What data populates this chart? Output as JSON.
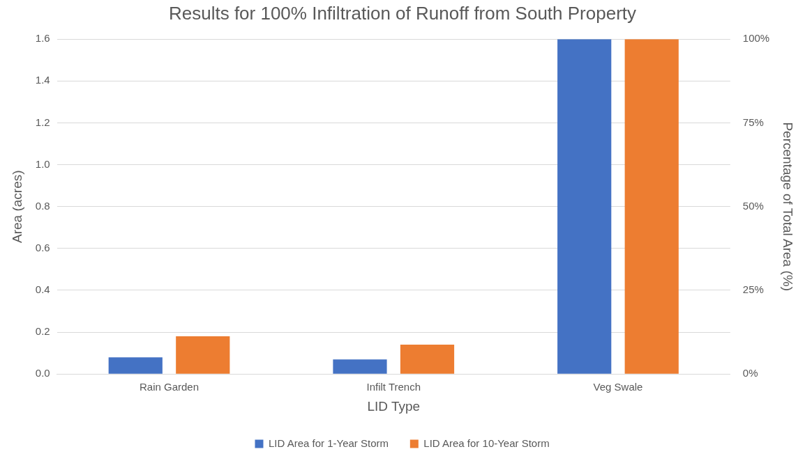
{
  "chart_data": {
    "type": "bar",
    "title": "Results for 100% Infiltration of Runoff from South Property",
    "xlabel": "LID Type",
    "ylabel": "Area (acres)",
    "y2label": "Percentage of Total Area (%)",
    "categories": [
      "Rain Garden",
      "Infilt Trench",
      "Veg Swale"
    ],
    "series": [
      {
        "name": "LID Area for 1-Year Storm",
        "color": "#4472c4",
        "values": [
          0.08,
          0.07,
          1.6
        ]
      },
      {
        "name": "LID Area for 10-Year Storm",
        "color": "#ed7d31",
        "values": [
          0.18,
          0.14,
          1.6
        ]
      }
    ],
    "ylim": [
      0,
      1.6
    ],
    "yticks": [
      {
        "value": 0,
        "label": "0.0"
      },
      {
        "value": 0.2,
        "label": "0.2"
      },
      {
        "value": 0.4,
        "label": "0.4"
      },
      {
        "value": 0.6,
        "label": "0.6"
      },
      {
        "value": 0.8,
        "label": "0.8"
      },
      {
        "value": 1,
        "label": "1.0"
      },
      {
        "value": 1.2,
        "label": "1.2"
      },
      {
        "value": 1.4,
        "label": "1.4"
      },
      {
        "value": 1.6,
        "label": "1.6"
      }
    ],
    "y2lim": [
      0,
      100
    ],
    "y2ticks": [
      {
        "value": 0,
        "label": "0%"
      },
      {
        "value": 25,
        "label": "25%"
      },
      {
        "value": 50,
        "label": "50%"
      },
      {
        "value": 75,
        "label": "75%"
      },
      {
        "value": 100,
        "label": "100%"
      }
    ],
    "grid": "y",
    "legend": "bottom"
  }
}
